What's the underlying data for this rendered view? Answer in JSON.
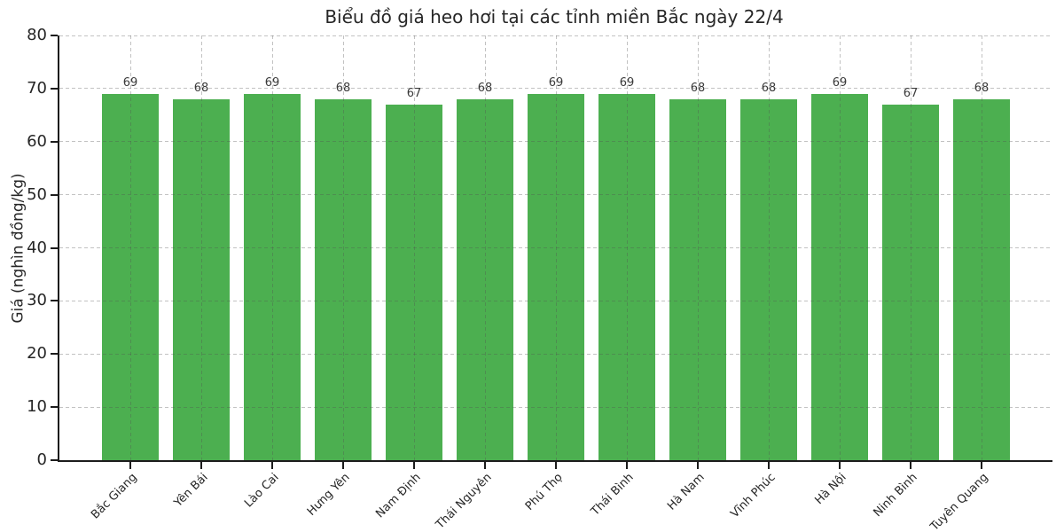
{
  "chart_data": {
    "type": "bar",
    "title": "Biểu đồ giá heo hơi tại các tỉnh miền Bắc ngày 22/4",
    "xlabel": "",
    "ylabel": "Giá (nghìn đồng/kg)",
    "categories": [
      "Bắc Giang",
      "Yên Bái",
      "Lào Cai",
      "Hưng Yên",
      "Nam Định",
      "Thái Nguyên",
      "Phú Thọ",
      "Thái Bình",
      "Hà Nam",
      "Vĩnh Phúc",
      "Hà Nội",
      "Ninh Bình",
      "Tuyên Quang"
    ],
    "values": [
      69,
      68,
      69,
      68,
      67,
      68,
      69,
      69,
      68,
      68,
      69,
      67,
      68
    ],
    "value_labels": [
      "69",
      "68",
      "69",
      "68",
      "67",
      "68",
      "69",
      "69",
      "68",
      "68",
      "69",
      "67",
      "68"
    ],
    "ylim": [
      0,
      80
    ],
    "yticks": [
      0,
      10,
      20,
      30,
      40,
      50,
      60,
      70,
      80
    ],
    "grid": "dashed, horizontal and vertical, drawn over bars",
    "legend": "none"
  },
  "colors": {
    "bar": "#4caf50",
    "grid": "rgba(80,80,80,0.35)",
    "axis": "#1c1c1c",
    "text": "#262626"
  }
}
